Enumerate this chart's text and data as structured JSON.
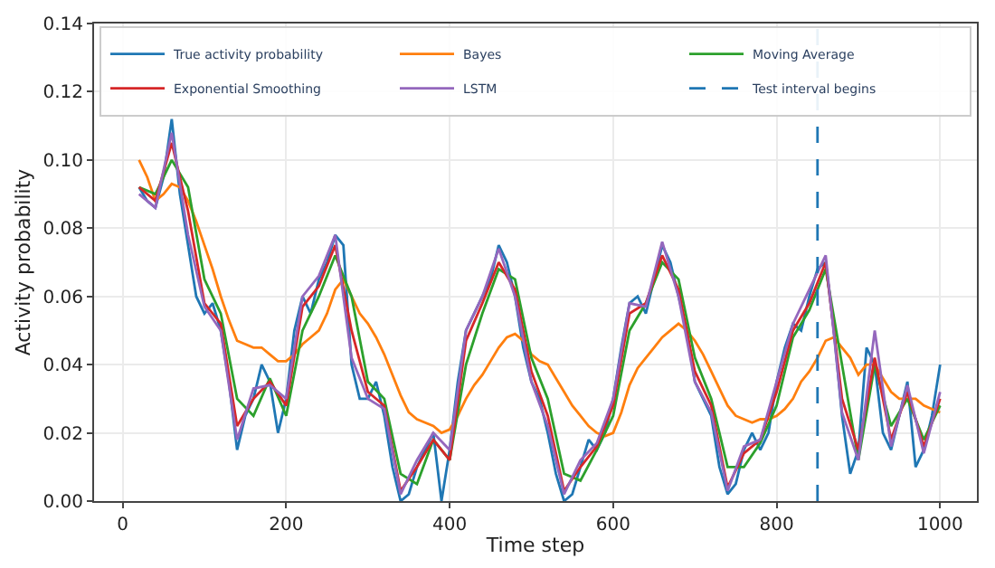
{
  "chart_data": {
    "type": "line",
    "xlabel": "Time step",
    "ylabel": "Activity probability",
    "xlim": [
      -35,
      1045
    ],
    "xticks": [
      0,
      200,
      400,
      600,
      800,
      1000
    ],
    "ylim": [
      0,
      0.14
    ],
    "yticks": [
      {
        "value": 0,
        "label": "0.00"
      },
      {
        "value": 0.02,
        "label": "0.02"
      },
      {
        "value": 0.04,
        "label": "0.04"
      },
      {
        "value": 0.06,
        "label": "0.06"
      },
      {
        "value": 0.08,
        "label": "0.08"
      },
      {
        "value": 0.1,
        "label": "0.10"
      },
      {
        "value": 0.12,
        "label": "0.12"
      },
      {
        "value": 0.14,
        "label": "0.14"
      }
    ],
    "grid": true,
    "legend": "top",
    "line_style": "solid",
    "x": [
      20,
      30,
      40,
      50,
      60,
      70,
      80,
      90,
      100,
      110,
      120,
      130,
      140,
      150,
      160,
      170,
      180,
      190,
      200,
      210,
      220,
      230,
      240,
      250,
      260,
      270,
      280,
      290,
      300,
      310,
      320,
      330,
      340,
      350,
      360,
      370,
      380,
      390,
      400,
      410,
      420,
      430,
      440,
      450,
      460,
      470,
      480,
      490,
      500,
      510,
      520,
      530,
      540,
      550,
      560,
      570,
      580,
      590,
      600,
      610,
      620,
      630,
      640,
      650,
      660,
      670,
      680,
      690,
      700,
      710,
      720,
      730,
      740,
      750,
      760,
      770,
      780,
      790,
      800,
      810,
      820,
      830,
      840,
      850,
      860,
      870,
      880,
      890,
      900,
      910,
      920,
      930,
      940,
      950,
      960,
      970,
      980,
      990,
      1000
    ],
    "series": [
      {
        "name": "True activity probability",
        "color": "#1f77b4",
        "values": [
          0.092,
          0.088,
          0.086,
          0.095,
          0.112,
          0.09,
          0.075,
          0.06,
          0.055,
          0.058,
          0.05,
          0.035,
          0.015,
          0.025,
          0.03,
          0.04,
          0.035,
          0.02,
          0.03,
          0.05,
          0.06,
          0.055,
          0.065,
          0.07,
          0.078,
          0.075,
          0.04,
          0.03,
          0.03,
          0.035,
          0.025,
          0.01,
          0.0,
          0.002,
          0.01,
          0.015,
          0.02,
          0.0,
          0.015,
          0.035,
          0.05,
          0.055,
          0.06,
          0.065,
          0.075,
          0.07,
          0.06,
          0.045,
          0.035,
          0.03,
          0.02,
          0.008,
          0.0,
          0.002,
          0.01,
          0.018,
          0.015,
          0.02,
          0.03,
          0.045,
          0.058,
          0.06,
          0.055,
          0.065,
          0.075,
          0.07,
          0.06,
          0.05,
          0.035,
          0.03,
          0.025,
          0.01,
          0.002,
          0.005,
          0.015,
          0.02,
          0.015,
          0.02,
          0.035,
          0.045,
          0.052,
          0.05,
          0.06,
          0.068,
          0.07,
          0.05,
          0.025,
          0.008,
          0.015,
          0.045,
          0.04,
          0.02,
          0.015,
          0.025,
          0.035,
          0.01,
          0.015,
          0.025,
          0.04
        ]
      },
      {
        "name": "Bayes",
        "color": "#ff7f0e",
        "values": [
          0.1,
          0.095,
          0.088,
          0.09,
          0.093,
          0.092,
          0.088,
          0.082,
          0.075,
          0.068,
          0.06,
          0.053,
          0.047,
          0.046,
          0.045,
          0.045,
          0.043,
          0.041,
          0.041,
          0.043,
          0.046,
          0.048,
          0.05,
          0.055,
          0.062,
          0.065,
          0.06,
          0.055,
          0.052,
          0.048,
          0.043,
          0.037,
          0.031,
          0.026,
          0.024,
          0.023,
          0.022,
          0.02,
          0.021,
          0.025,
          0.03,
          0.034,
          0.037,
          0.041,
          0.045,
          0.048,
          0.049,
          0.047,
          0.043,
          0.041,
          0.04,
          0.036,
          0.032,
          0.028,
          0.025,
          0.022,
          0.02,
          0.019,
          0.02,
          0.026,
          0.034,
          0.039,
          0.042,
          0.045,
          0.048,
          0.05,
          0.052,
          0.05,
          0.047,
          0.043,
          0.038,
          0.033,
          0.028,
          0.025,
          0.024,
          0.023,
          0.024,
          0.024,
          0.025,
          0.027,
          0.03,
          0.035,
          0.038,
          0.042,
          0.047,
          0.048,
          0.045,
          0.042,
          0.037,
          0.04,
          0.04,
          0.036,
          0.032,
          0.03,
          0.03,
          0.03,
          0.028,
          0.027,
          0.026
        ]
      },
      {
        "name": "Moving Average",
        "color": "#2ca02c",
        "x": [
          20,
          40,
          60,
          80,
          100,
          120,
          140,
          160,
          180,
          200,
          220,
          240,
          260,
          280,
          300,
          320,
          340,
          360,
          380,
          400,
          420,
          440,
          460,
          480,
          500,
          520,
          540,
          560,
          580,
          600,
          620,
          640,
          660,
          680,
          700,
          720,
          740,
          760,
          780,
          800,
          820,
          840,
          860,
          880,
          900,
          920,
          940,
          960,
          980,
          1000
        ],
        "values": [
          0.092,
          0.09,
          0.1,
          0.092,
          0.065,
          0.055,
          0.03,
          0.025,
          0.036,
          0.025,
          0.05,
          0.06,
          0.072,
          0.06,
          0.035,
          0.03,
          0.008,
          0.005,
          0.018,
          0.012,
          0.04,
          0.055,
          0.068,
          0.065,
          0.042,
          0.03,
          0.008,
          0.006,
          0.015,
          0.025,
          0.05,
          0.058,
          0.07,
          0.065,
          0.042,
          0.03,
          0.01,
          0.01,
          0.017,
          0.028,
          0.048,
          0.056,
          0.068,
          0.04,
          0.012,
          0.04,
          0.022,
          0.03,
          0.018,
          0.028
        ]
      },
      {
        "name": "Exponential Smoothing",
        "color": "#d62728",
        "x": [
          20,
          40,
          60,
          80,
          100,
          120,
          140,
          160,
          180,
          200,
          220,
          240,
          260,
          280,
          300,
          320,
          340,
          360,
          380,
          400,
          420,
          440,
          460,
          480,
          500,
          520,
          540,
          560,
          580,
          600,
          620,
          640,
          660,
          680,
          700,
          720,
          740,
          760,
          780,
          800,
          820,
          840,
          860,
          880,
          900,
          920,
          940,
          960,
          980,
          1000
        ],
        "values": [
          0.092,
          0.088,
          0.105,
          0.085,
          0.058,
          0.052,
          0.022,
          0.03,
          0.035,
          0.028,
          0.057,
          0.063,
          0.075,
          0.05,
          0.032,
          0.028,
          0.003,
          0.01,
          0.018,
          0.012,
          0.047,
          0.058,
          0.07,
          0.062,
          0.038,
          0.025,
          0.003,
          0.01,
          0.016,
          0.028,
          0.055,
          0.058,
          0.072,
          0.062,
          0.038,
          0.028,
          0.004,
          0.014,
          0.018,
          0.032,
          0.05,
          0.058,
          0.07,
          0.03,
          0.015,
          0.042,
          0.018,
          0.032,
          0.016,
          0.03
        ]
      },
      {
        "name": "LSTM",
        "color": "#9467bd",
        "x": [
          20,
          40,
          60,
          80,
          100,
          120,
          140,
          160,
          180,
          200,
          220,
          240,
          260,
          280,
          300,
          320,
          340,
          360,
          380,
          400,
          420,
          440,
          460,
          480,
          500,
          520,
          540,
          560,
          580,
          600,
          620,
          640,
          660,
          680,
          700,
          720,
          740,
          760,
          780,
          800,
          820,
          840,
          860,
          880,
          900,
          920,
          940,
          960,
          980,
          1000
        ],
        "values": [
          0.09,
          0.086,
          0.108,
          0.078,
          0.057,
          0.05,
          0.018,
          0.033,
          0.034,
          0.03,
          0.06,
          0.066,
          0.078,
          0.042,
          0.03,
          0.027,
          0.002,
          0.012,
          0.02,
          0.015,
          0.05,
          0.06,
          0.074,
          0.06,
          0.035,
          0.022,
          0.002,
          0.012,
          0.017,
          0.03,
          0.058,
          0.057,
          0.076,
          0.06,
          0.035,
          0.026,
          0.003,
          0.016,
          0.018,
          0.035,
          0.052,
          0.062,
          0.072,
          0.026,
          0.012,
          0.05,
          0.016,
          0.034,
          0.014,
          0.032
        ]
      }
    ],
    "ref_lines": [
      {
        "axis": "x",
        "value": 850,
        "label": "Test interval begins",
        "color": "#1f77b4",
        "line_style": "dashed"
      }
    ]
  }
}
